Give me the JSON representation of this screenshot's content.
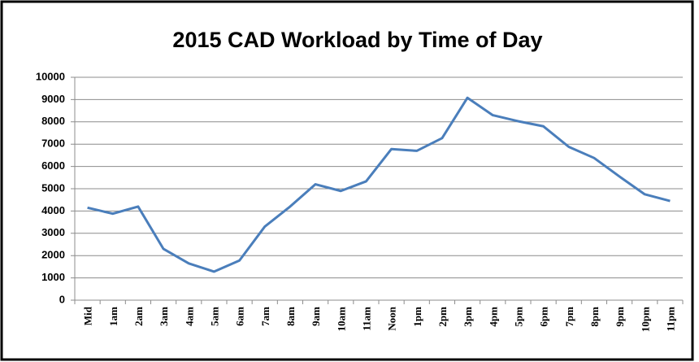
{
  "chart_data": {
    "type": "line",
    "title": "2015 CAD Workload by Time of Day",
    "categories": [
      "Mid",
      "1am",
      "2am",
      "3am",
      "4am",
      "5am",
      "6am",
      "7am",
      "8am",
      "9am",
      "10am",
      "11am",
      "Noon",
      "1pm",
      "2pm",
      "3pm",
      "4pm",
      "5pm",
      "6pm",
      "7pm",
      "8pm",
      "9pm",
      "10pm",
      "11pm"
    ],
    "series": [
      {
        "color": "#4a7ebb",
        "values": [
          4150,
          3880,
          4200,
          2300,
          1650,
          1280,
          1780,
          3300,
          4200,
          5200,
          4900,
          5330,
          6780,
          6700,
          7270,
          9080,
          8300,
          8030,
          7800,
          6880,
          6380,
          5550,
          4750,
          4450
        ]
      }
    ],
    "ylim": [
      0,
      10000
    ],
    "yticks": [
      0,
      1000,
      2000,
      3000,
      4000,
      5000,
      6000,
      7000,
      8000,
      9000,
      10000
    ],
    "grid": true
  }
}
